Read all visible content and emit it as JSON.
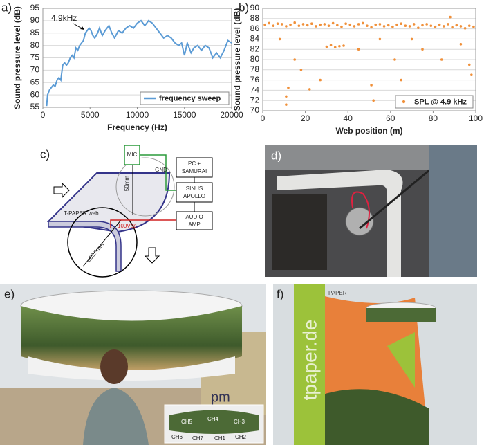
{
  "panels": {
    "a": "a)",
    "b": "b)",
    "c": "c)",
    "d": "d)",
    "e": "e)",
    "f": "f)"
  },
  "chart_data": [
    {
      "type": "line",
      "xlabel": "Frequency (Hz)",
      "ylabel": "Sound pressure level (dB)",
      "annotation": "4.9kHz",
      "x": [
        400,
        500,
        700,
        900,
        1100,
        1300,
        1500,
        1700,
        1900,
        2100,
        2300,
        2500,
        2700,
        2900,
        3100,
        3300,
        3500,
        3700,
        3900,
        4100,
        4300,
        4500,
        4700,
        4900,
        5100,
        5300,
        5500,
        5800,
        6000,
        6300,
        6600,
        7000,
        7300,
        7600,
        8000,
        8400,
        8800,
        9200,
        9600,
        10000,
        10400,
        10800,
        11200,
        11600,
        12000,
        12400,
        12800,
        13200,
        13600,
        14000,
        14400,
        14700,
        15000,
        15300,
        15700,
        16000,
        16400,
        16800,
        17200,
        17600,
        18000,
        18400,
        18800,
        19200,
        19600,
        20000
      ],
      "series": [
        {
          "name": "frequency sweep",
          "color": "#5b9bd5",
          "values": [
            55.5,
            60,
            62,
            63,
            64,
            63.5,
            66,
            67,
            66,
            72,
            73,
            72,
            73,
            75,
            76,
            75,
            79,
            78,
            80,
            81,
            82,
            85,
            86,
            87,
            86,
            84,
            83,
            85,
            87,
            84,
            86,
            88,
            85,
            83,
            86,
            85,
            87,
            88,
            87,
            89,
            90,
            88,
            90,
            89,
            87,
            85,
            83,
            84,
            83,
            81,
            80,
            81,
            76,
            81,
            77,
            79,
            80,
            78,
            80,
            79,
            75,
            77,
            75,
            78,
            82,
            81
          ]
        }
      ],
      "xlim": [
        0,
        20000
      ],
      "xticks": [
        0,
        5000,
        10000,
        15000,
        20000
      ],
      "ylim": [
        55,
        95
      ],
      "yticks": [
        55,
        60,
        65,
        70,
        75,
        80,
        85,
        90,
        95
      ],
      "grid": true,
      "legend": "lower right"
    },
    {
      "type": "scatter",
      "xlabel": "Web position (m)",
      "ylabel": "Sound pressure level (dB)",
      "x": [
        1,
        3,
        5,
        7,
        9,
        11,
        13,
        15,
        17,
        19,
        21,
        23,
        25,
        27,
        29,
        31,
        33,
        35,
        37,
        39,
        41,
        43,
        45,
        47,
        49,
        51,
        53,
        55,
        57,
        59,
        61,
        63,
        65,
        67,
        69,
        71,
        73,
        75,
        77,
        79,
        81,
        83,
        85,
        87,
        89,
        91,
        93,
        95,
        97,
        99,
        30,
        32,
        34,
        36,
        38,
        11,
        11,
        12,
        22,
        27,
        15,
        18,
        8,
        45,
        51,
        52,
        55,
        62,
        65,
        70,
        75,
        84,
        88,
        93,
        97,
        98
      ],
      "series": [
        {
          "name": "SPL @ 4.9 kHz",
          "color": "#f0903a",
          "values": [
            86.8,
            87.1,
            86.6,
            87.0,
            86.9,
            86.5,
            86.8,
            87.2,
            86.6,
            86.9,
            86.7,
            87.0,
            86.5,
            86.8,
            86.9,
            86.6,
            87.1,
            86.7,
            86.4,
            87.0,
            86.8,
            86.5,
            86.9,
            87.1,
            86.6,
            86.3,
            86.8,
            86.9,
            86.5,
            86.7,
            86.4,
            86.8,
            87.0,
            86.6,
            86.5,
            86.9,
            86.2,
            86.7,
            86.9,
            86.6,
            86.4,
            86.8,
            86.5,
            86.9,
            86.3,
            86.7,
            86.5,
            86.1,
            86.6,
            86.4,
            82.5,
            82.8,
            82.4,
            82.6,
            82.7,
            71.2,
            72.8,
            74.5,
            74.2,
            76,
            80,
            78,
            84,
            82,
            75,
            72,
            84,
            80,
            76,
            84,
            82,
            80,
            88.3,
            83,
            79,
            77
          ]
        }
      ],
      "xlim": [
        0,
        100
      ],
      "xticks": [
        0,
        20,
        40,
        60,
        80,
        100
      ],
      "ylim": [
        70,
        90
      ],
      "yticks": [
        70,
        72,
        74,
        76,
        78,
        80,
        82,
        84,
        86,
        88,
        90
      ],
      "grid": true,
      "legend": "lower right"
    }
  ],
  "diagram": {
    "mic": "MIC",
    "pc": [
      "PC +",
      "SAMURAI"
    ],
    "sinus": [
      "SINUS",
      "APOLLO"
    ],
    "amp": [
      "AUDIO",
      "AMP"
    ],
    "gnd": "GND",
    "voltage": "100Vpp",
    "height": "50mm",
    "web": "T-PAPER web",
    "diameter": "ø62.5mm"
  },
  "photos": {
    "e_channels": [
      "CH5",
      "CH4",
      "CH3",
      "CH6",
      "CH7",
      "CH1",
      "CH2"
    ],
    "e_logo": "pm",
    "f_brand": "tpaper.de",
    "f_sign": "PAPER"
  }
}
